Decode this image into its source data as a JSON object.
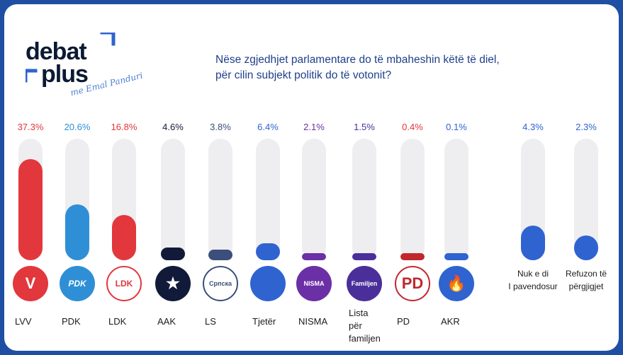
{
  "logo": {
    "line1": "debat",
    "line2": "plus",
    "script": "me Emal Panduri"
  },
  "question": {
    "line1": "Nëse zgjedhjet parlamentare do të mbaheshin këtë të diel,",
    "line2": "për cilin subjekt politik do të votonit?"
  },
  "colors": {
    "red": "#e2373d",
    "blue": "#2f8fd6",
    "navy": "#121a3a",
    "slate": "#3b4f7a",
    "mid_blue": "#2f63d0",
    "purple": "#6b2fa6",
    "frame": "#1f4fa3"
  },
  "chart_data": {
    "type": "bar",
    "title": "Nëse zgjedhjet parlamentare do të mbaheshin këtë të diel, për cilin subjekt politik do të votonit?",
    "categories": [
      "LVV",
      "PDK",
      "LDK",
      "AAK",
      "LS",
      "Tjetër",
      "NISMA",
      "Lista për familjen",
      "PD",
      "AKR",
      "Nuk e di I pavendosur",
      "Refuzon të përgjigjet"
    ],
    "values": [
      37.3,
      20.6,
      16.8,
      4.6,
      3.8,
      6.4,
      2.1,
      1.5,
      0.4,
      0.1,
      4.3,
      2.3
    ],
    "value_labels": [
      "37.3%",
      "20.6%",
      "16.8%",
      "4.6%",
      "3.8%",
      "6.4%",
      "2.1%",
      "1.5%",
      "0.4%",
      "0.1%",
      "4.3%",
      "2.3%"
    ],
    "ylim": [
      0,
      45
    ]
  },
  "parties": [
    {
      "label1": "LVV",
      "label2": "",
      "pct": "37.3%",
      "logo_text": "V",
      "color": "#e2373d",
      "pct_color": "#e2373d"
    },
    {
      "label1": "PDK",
      "label2": "",
      "pct": "20.6%",
      "logo_text": "PDK",
      "color": "#2f8fd6",
      "pct_color": "#2f8fd6"
    },
    {
      "label1": "LDK",
      "label2": "",
      "pct": "16.8%",
      "logo_text": "LDK",
      "color": "#e2373d",
      "pct_color": "#e2373d"
    },
    {
      "label1": "AAK",
      "label2": "",
      "pct": "4.6%",
      "logo_text": "★",
      "color": "#121a3a",
      "pct_color": "#121a3a"
    },
    {
      "label1": "LS",
      "label2": "",
      "pct": "3.8%",
      "logo_text": "Српска",
      "color": "#3b4f7a",
      "pct_color": "#3b4f7a"
    },
    {
      "label1": "Tjetër",
      "label2": "",
      "pct": "6.4%",
      "logo_text": "",
      "color": "#2f63d0",
      "pct_color": "#2f63d0"
    },
    {
      "label1": "NISMA",
      "label2": "",
      "pct": "2.1%",
      "logo_text": "NISMA",
      "color": "#6b2fa6",
      "pct_color": "#6b2fa6"
    },
    {
      "label1": "Lista për",
      "label2": "familjen",
      "pct": "1.5%",
      "logo_text": "Familjen",
      "color": "#4a2f9a",
      "pct_color": "#4a2f9a"
    },
    {
      "label1": "PD",
      "label2": "",
      "pct": "0.4%",
      "logo_text": "PD",
      "color": "#c0282e",
      "pct_color": "#e2373d"
    },
    {
      "label1": "AKR",
      "label2": "",
      "pct": "0.1%",
      "logo_text": "🔥",
      "color": "#2f63d0",
      "pct_color": "#2f63d0"
    },
    {
      "label1": "Nuk e di",
      "label2": "I pavendosur",
      "pct": "4.3%",
      "logo_text": "",
      "color": "#2f63d0",
      "pct_color": "#2f63d0"
    },
    {
      "label1": "Refuzon të",
      "label2": "përgjigjet",
      "pct": "2.3%",
      "logo_text": "",
      "color": "#2f63d0",
      "pct_color": "#2f63d0"
    }
  ]
}
